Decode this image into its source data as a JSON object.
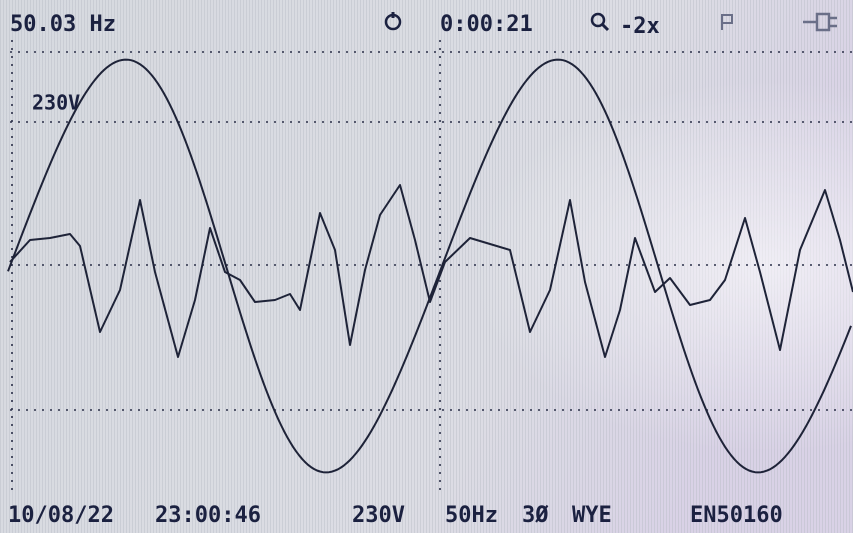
{
  "header": {
    "frequency": "50.03 Hz",
    "timer": "0:00:21",
    "zoom": "-2x"
  },
  "scale_label": "230V",
  "footer": {
    "date": "10/08/22",
    "time": "23:00:46",
    "nominal_voltage": "230V",
    "nominal_frequency": "50Hz",
    "phase": "3Ø",
    "wiring": "WYE",
    "standard": "EN50160"
  }
}
